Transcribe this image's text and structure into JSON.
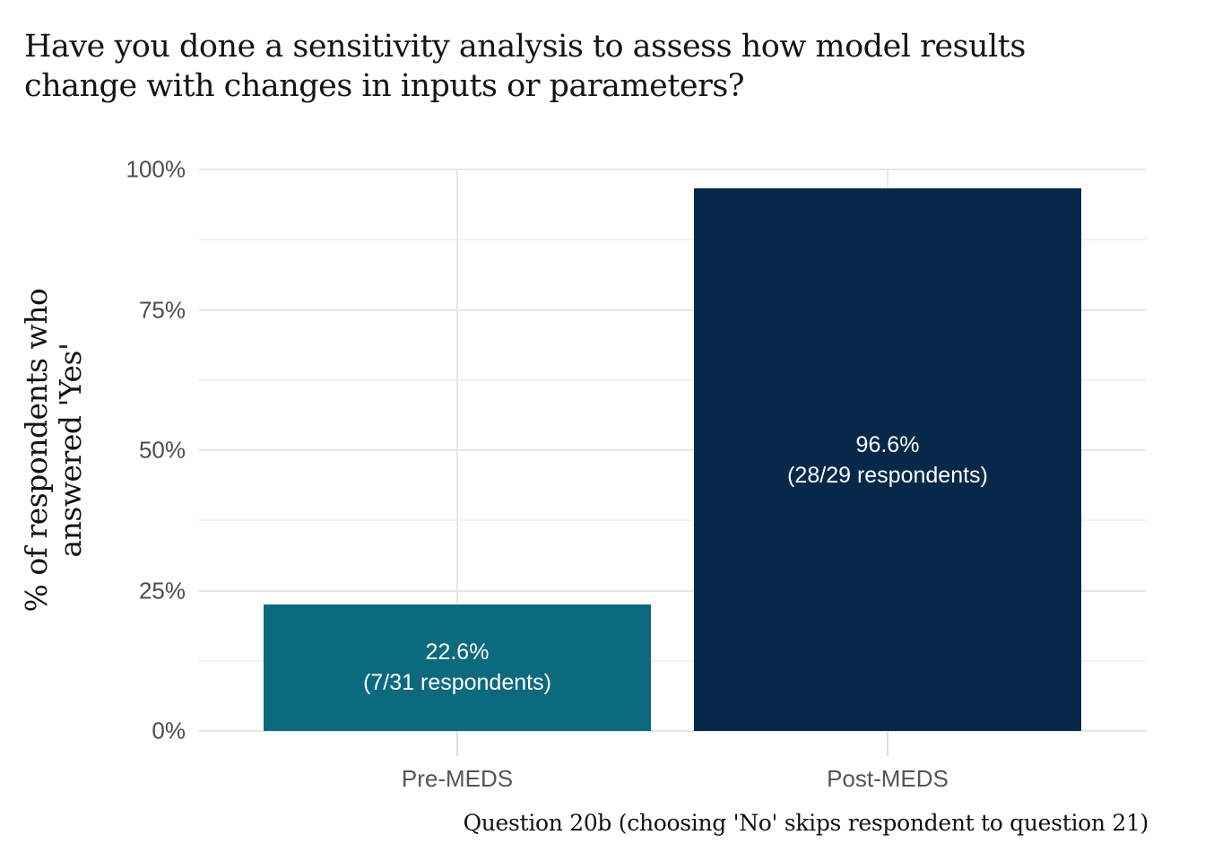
{
  "title": {
    "line1": "Have you done a sensitivity analysis to assess how model results",
    "line2": "change with changes in inputs or parameters?"
  },
  "axes": {
    "y_label_line1": "% of respondents who",
    "y_label_line2": "answered 'Yes'",
    "x_caption": "Question 20b (choosing 'No' skips respondent to question 21)",
    "y_tick_labels": [
      "0%",
      "25%",
      "50%",
      "75%",
      "100%"
    ]
  },
  "chart_data": {
    "type": "bar",
    "title": "Have you done a sensitivity analysis to assess how model results change with changes in inputs or parameters?",
    "categories": [
      "Pre-MEDS",
      "Post-MEDS"
    ],
    "values": [
      22.6,
      96.6
    ],
    "bar_labels": [
      [
        "22.6%",
        "(7/31 respondents)"
      ],
      [
        "96.6%",
        "(28/29 respondents)"
      ]
    ],
    "respondent_counts": [
      "7/31",
      "28/29"
    ],
    "bar_colors": [
      "#0d6a7e",
      "#06294a"
    ],
    "xlabel": "Question 20b (choosing 'No' skips respondent to question 21)",
    "ylabel": "% of respondents who answered 'Yes'",
    "ylim": [
      0,
      100
    ],
    "yticks": [
      0,
      25,
      50,
      75,
      100
    ],
    "minor_yticks": [
      12.5,
      37.5,
      62.5,
      87.5
    ],
    "grid": true,
    "legend_position": "none",
    "background": "#ffffff",
    "gridline_color_major": "#e6e6e6",
    "gridline_color_minor": "#f2f2f2",
    "label_text_color": "#ffffff",
    "tick_label_color": "#4d4d4d"
  }
}
